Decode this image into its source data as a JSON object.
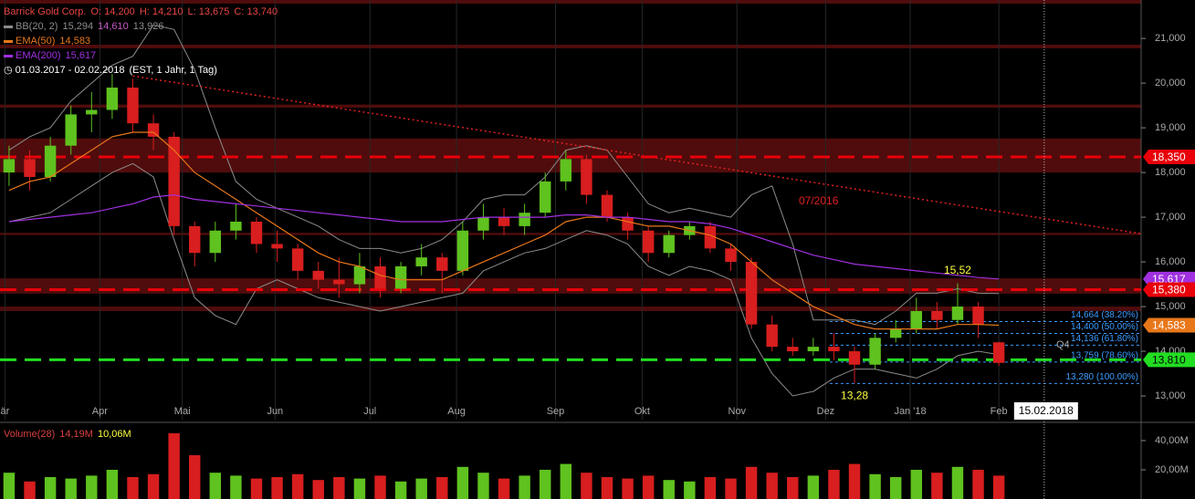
{
  "chart_data": [
    {
      "type": "candlestick",
      "title": "Barrick Gold Corp.",
      "color": "#e84545",
      "ohlc_labels": [
        "O: 14,200",
        "H: 14,210",
        "L: 13,675",
        "C: 13,740"
      ],
      "date_range": "01.03.2017 - 02.02.2018",
      "range_note": "(EST, 1 Jahr, 1 Tag)",
      "up_color": "#5fc21f",
      "down_color": "#d81e1e",
      "grid": true,
      "x": [
        0,
        1,
        2,
        3,
        4,
        5,
        6,
        7,
        8,
        9,
        10,
        11,
        12,
        13,
        14,
        15,
        16,
        17,
        18,
        19,
        20,
        21,
        22,
        23,
        24,
        25,
        26,
        27,
        28,
        29,
        30,
        31,
        32,
        33,
        34,
        35,
        36,
        37,
        38,
        39,
        40,
        41,
        42,
        43,
        44,
        45,
        46,
        47,
        48
      ],
      "open": [
        18.0,
        18.3,
        17.9,
        18.6,
        19.3,
        19.4,
        19.9,
        19.1,
        18.8,
        16.8,
        16.2,
        16.7,
        16.9,
        16.4,
        16.3,
        15.8,
        15.6,
        15.5,
        15.9,
        15.4,
        15.9,
        16.1,
        15.8,
        16.7,
        17.0,
        16.8,
        17.1,
        17.8,
        18.3,
        17.5,
        17.0,
        16.7,
        16.2,
        16.6,
        16.8,
        16.3,
        16.0,
        14.6,
        14.1,
        14.0,
        14.1,
        14.0,
        13.7,
        14.3,
        14.5,
        14.9,
        14.7,
        15.0,
        14.2
      ],
      "high": [
        18.6,
        18.5,
        18.8,
        19.5,
        19.8,
        20.2,
        20.1,
        19.3,
        18.9,
        16.9,
        16.9,
        17.3,
        17.0,
        16.7,
        16.4,
        16.0,
        16.1,
        16.2,
        16.1,
        16.0,
        16.4,
        16.2,
        16.9,
        17.3,
        17.2,
        17.3,
        18.0,
        18.5,
        18.4,
        17.6,
        17.1,
        16.8,
        16.7,
        16.9,
        16.9,
        16.4,
        16.1,
        14.8,
        14.3,
        14.3,
        14.4,
        14.1,
        14.4,
        14.7,
        15.2,
        15.1,
        15.52,
        15.1,
        14.21
      ],
      "low": [
        17.7,
        17.6,
        17.8,
        18.4,
        18.9,
        19.2,
        18.9,
        18.5,
        16.6,
        15.9,
        16.0,
        16.5,
        16.2,
        16.0,
        15.6,
        15.4,
        15.2,
        15.3,
        15.2,
        15.3,
        15.7,
        15.3,
        15.7,
        16.5,
        16.6,
        16.6,
        17.0,
        17.6,
        17.3,
        16.9,
        16.5,
        16.0,
        16.1,
        16.5,
        16.2,
        15.8,
        14.5,
        14.0,
        13.9,
        13.9,
        13.8,
        13.28,
        13.6,
        14.2,
        14.4,
        14.5,
        14.6,
        14.3,
        13.675
      ],
      "close": [
        18.3,
        17.9,
        18.6,
        19.3,
        19.4,
        19.9,
        19.1,
        18.8,
        16.8,
        16.2,
        16.7,
        16.9,
        16.4,
        16.3,
        15.8,
        15.6,
        15.5,
        15.9,
        15.4,
        15.9,
        16.1,
        15.8,
        16.7,
        17.0,
        16.8,
        17.1,
        17.8,
        18.3,
        17.5,
        17.0,
        16.7,
        16.2,
        16.6,
        16.8,
        16.3,
        16.0,
        14.6,
        14.1,
        14.0,
        14.1,
        14.0,
        13.7,
        14.3,
        14.5,
        14.9,
        14.7,
        15.0,
        14.6,
        13.74
      ],
      "bollinger": {
        "name": "BB(20, 2)",
        "color": "#8c8c8c",
        "legend_values": [
          "15,294",
          "14,610",
          "13,926"
        ],
        "legend_colors": [
          "#8c8c8c",
          "#c45ac4",
          "#8c8c8c"
        ],
        "upper": [
          18.5,
          18.8,
          19.0,
          19.6,
          20.0,
          20.4,
          20.6,
          21.3,
          21.2,
          20.3,
          19.0,
          17.8,
          17.4,
          17.2,
          17.0,
          16.8,
          16.5,
          16.3,
          16.3,
          16.2,
          16.3,
          16.5,
          16.9,
          17.4,
          17.5,
          17.5,
          17.9,
          18.5,
          18.6,
          18.5,
          17.9,
          17.3,
          17.1,
          17.2,
          17.1,
          17.0,
          17.5,
          17.7,
          16.4,
          14.7,
          14.7,
          14.7,
          14.6,
          14.9,
          15.3,
          15.3,
          15.4,
          15.3,
          15.294
        ],
        "lower": [
          16.9,
          17.0,
          17.1,
          17.4,
          17.7,
          18.0,
          18.2,
          17.9,
          16.5,
          15.2,
          14.8,
          14.6,
          15.4,
          15.6,
          15.4,
          15.2,
          15.1,
          15.0,
          14.9,
          15.0,
          15.1,
          15.2,
          15.3,
          15.8,
          16.0,
          16.2,
          16.3,
          16.5,
          16.7,
          16.6,
          16.4,
          15.9,
          15.7,
          15.9,
          15.8,
          15.6,
          14.3,
          13.5,
          13.0,
          13.1,
          13.4,
          13.6,
          13.6,
          13.5,
          13.4,
          13.6,
          13.9,
          14.0,
          13.926
        ]
      },
      "series": [
        {
          "name": "EMA(50)",
          "color": "#e8771a",
          "legend_value": "14,583",
          "values": [
            17.6,
            17.8,
            17.9,
            18.2,
            18.5,
            18.8,
            18.9,
            18.9,
            18.5,
            18.0,
            17.7,
            17.4,
            17.1,
            16.8,
            16.5,
            16.2,
            16.0,
            15.9,
            15.7,
            15.6,
            15.6,
            15.6,
            15.8,
            16.0,
            16.2,
            16.4,
            16.6,
            16.9,
            17.0,
            17.0,
            16.9,
            16.8,
            16.8,
            16.7,
            16.6,
            16.4,
            16.0,
            15.6,
            15.3,
            15.0,
            14.8,
            14.6,
            14.5,
            14.5,
            14.5,
            14.5,
            14.6,
            14.6,
            14.583
          ]
        },
        {
          "name": "EMA(200)",
          "color": "#a030e0",
          "legend_value": "15,617",
          "values": [
            16.9,
            16.95,
            17.0,
            17.05,
            17.1,
            17.2,
            17.3,
            17.45,
            17.5,
            17.4,
            17.35,
            17.3,
            17.25,
            17.2,
            17.15,
            17.1,
            17.05,
            17.0,
            16.95,
            16.9,
            16.9,
            16.9,
            16.95,
            17.0,
            17.0,
            17.0,
            17.0,
            17.05,
            17.05,
            17.0,
            17.0,
            16.95,
            16.9,
            16.9,
            16.85,
            16.75,
            16.6,
            16.45,
            16.3,
            16.15,
            16.05,
            15.95,
            15.9,
            15.85,
            15.8,
            15.75,
            15.7,
            15.65,
            15.617
          ]
        }
      ],
      "zones": [
        [
          21.78,
          21.86
        ],
        [
          20.78,
          20.86
        ],
        [
          19.45,
          19.52
        ],
        [
          18.0,
          18.76
        ],
        [
          16.6,
          16.65
        ],
        [
          15.29,
          15.63
        ],
        [
          14.9,
          15.0
        ]
      ],
      "zone_color": "#6b1010",
      "price_labels": [
        {
          "value": 18.35,
          "label": "18,350",
          "color": "#e8000a",
          "line": "dashed"
        },
        {
          "value": 15.617,
          "label": "15,617",
          "color": "#a030e0"
        },
        {
          "value": 15.38,
          "label": "15,380",
          "color": "#e8000a",
          "line": "dashed"
        },
        {
          "value": 14.583,
          "label": "14,583",
          "color": "#e8771a"
        },
        {
          "value": 13.81,
          "label": "13,810",
          "color": "#22dd22",
          "line": "dashed"
        }
      ],
      "fib": {
        "x_start": 39.8,
        "color": "#3a9cff",
        "levels": [
          {
            "value": 14.664,
            "label": "14,664 (38.20%)"
          },
          {
            "value": 14.4,
            "label": "14,400 (50.00%)"
          },
          {
            "value": 14.136,
            "label": "14,136 (61.80%)"
          },
          {
            "value": 13.759,
            "label": "13,759 (78.60%)"
          },
          {
            "value": 13.28,
            "label": "13,280 (100.00%)"
          }
        ]
      },
      "trendline": {
        "x": [
          6.0,
          54.9
        ],
        "y": [
          20.16,
          16.63
        ],
        "color": "#e02020"
      },
      "annotations": [
        {
          "text": "15,52",
          "x": 46,
          "value": 15.52,
          "position": "above"
        },
        {
          "text": "13,28",
          "x": 41,
          "value": 13.28,
          "position": "below"
        }
      ],
      "annotation_color": "#ffff40",
      "notes": [
        "07/2016",
        "Q4"
      ],
      "cursor": {
        "x": 50.2,
        "label": "15.02.2018"
      },
      "xlim": [
        -0.44,
        54.9
      ],
      "ylim": [
        12.47,
        21.86
      ],
      "xticks": [
        {
          "value": -0.2,
          "label": "är"
        },
        {
          "value": 4.4,
          "label": "Apr"
        },
        {
          "value": 8.4,
          "label": "Mai"
        },
        {
          "value": 12.9,
          "label": "Jun"
        },
        {
          "value": 17.5,
          "label": "Jul"
        },
        {
          "value": 21.7,
          "label": "Aug"
        },
        {
          "value": 26.5,
          "label": "Sep"
        },
        {
          "value": 30.7,
          "label": "Okt"
        },
        {
          "value": 35.3,
          "label": "Nov"
        },
        {
          "value": 39.6,
          "label": "Dez"
        },
        {
          "value": 43.7,
          "label": "Jan '18"
        },
        {
          "value": 48.0,
          "label": "Feb"
        }
      ],
      "yticks": [
        {
          "value": 13,
          "label": "13,000"
        },
        {
          "value": 14,
          "label": "14,000"
        },
        {
          "value": 15,
          "label": "15,000"
        },
        {
          "value": 16,
          "label": "16,000"
        },
        {
          "value": 17,
          "label": "17,000"
        },
        {
          "value": 18,
          "label": "18,000"
        },
        {
          "value": 19,
          "label": "19,000"
        },
        {
          "value": 20,
          "label": "20,000"
        },
        {
          "value": 21,
          "label": "21,000"
        }
      ]
    },
    {
      "type": "bar",
      "title": "Volume(28)",
      "color": "#d84040",
      "legend_values": [
        "14,19M",
        "10,06M"
      ],
      "legend_colors": [
        "#d84040",
        "#ffff40"
      ],
      "values": [
        18,
        12,
        15,
        14,
        16,
        20,
        15,
        17,
        45,
        30,
        18,
        16,
        14,
        15,
        17,
        13,
        15,
        14,
        16,
        12,
        14,
        15,
        22,
        18,
        14,
        16,
        20,
        24,
        18,
        15,
        14,
        16,
        13,
        12,
        15,
        14,
        22,
        18,
        15,
        16,
        20,
        24,
        17,
        15,
        20,
        18,
        22,
        20,
        16
      ],
      "ylim": [
        0,
        50.6
      ],
      "yticks": [
        {
          "value": 20,
          "label": "20,00M"
        },
        {
          "value": 40,
          "label": "40,00M"
        }
      ]
    }
  ]
}
